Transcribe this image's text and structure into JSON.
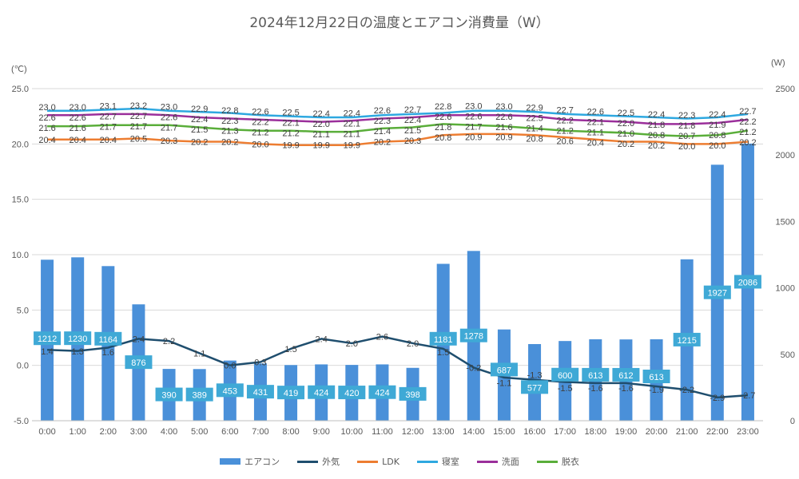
{
  "chart_data": {
    "type": "bar+line",
    "title": "2024年12月22日の温度とエアコン消費量（W）",
    "y_left_label": "(℃)",
    "y_right_label": "(W)",
    "y_left_lim": [
      -5,
      25
    ],
    "y_left_ticks": [
      "-5.0",
      "0.0",
      "5.0",
      "10.0",
      "15.0",
      "20.0",
      "25.0"
    ],
    "y_right_lim": [
      0,
      2500
    ],
    "y_right_ticks": [
      "0",
      "500",
      "1000",
      "1500",
      "2000",
      "2500"
    ],
    "grid": true,
    "legend_position": "bottom",
    "categories": [
      "0:00",
      "1:00",
      "2:00",
      "3:00",
      "4:00",
      "5:00",
      "6:00",
      "7:00",
      "8:00",
      "9:00",
      "10:00",
      "11:00",
      "12:00",
      "13:00",
      "14:00",
      "15:00",
      "16:00",
      "17:00",
      "18:00",
      "19:00",
      "20:00",
      "21:00",
      "22:00",
      "23:00"
    ],
    "bar_series": {
      "name": "エアコン",
      "axis": "right",
      "color": "#4a90d9",
      "label_bg": "#3fa9d6",
      "values": [
        1212,
        1230,
        1164,
        876,
        390,
        389,
        453,
        431,
        419,
        424,
        420,
        424,
        398,
        1181,
        1278,
        687,
        577,
        600,
        613,
        612,
        613,
        1215,
        1927,
        2086
      ]
    },
    "line_series": [
      {
        "name": "外気",
        "color": "#1f4e6e",
        "values": [
          1.4,
          1.3,
          1.6,
          2.4,
          2.2,
          1.1,
          0.0,
          0.3,
          1.5,
          2.4,
          2.0,
          2.6,
          2.0,
          1.5,
          -0.2,
          -1.1,
          -1.3,
          -1.5,
          -1.6,
          -1.6,
          -1.9,
          -2.2,
          -2.9,
          -2.7
        ]
      },
      {
        "name": "LDK",
        "color": "#ed7d31",
        "values": [
          20.4,
          20.4,
          20.4,
          20.5,
          20.3,
          20.2,
          20.2,
          20.0,
          19.9,
          19.9,
          19.9,
          20.2,
          20.3,
          20.8,
          20.9,
          20.9,
          20.8,
          20.6,
          20.4,
          20.2,
          20.2,
          20.0,
          20.0,
          20.2
        ]
      },
      {
        "name": "寝室",
        "color": "#2ea8e0",
        "values": [
          23.0,
          23.0,
          23.1,
          23.2,
          23.0,
          22.9,
          22.8,
          22.6,
          22.5,
          22.4,
          22.4,
          22.6,
          22.7,
          22.8,
          23.0,
          23.0,
          22.9,
          22.7,
          22.6,
          22.5,
          22.4,
          22.3,
          22.4,
          22.7
        ]
      },
      {
        "name": "洗面",
        "color": "#9b2f9b",
        "values": [
          22.6,
          22.6,
          22.7,
          22.7,
          22.6,
          22.4,
          22.3,
          22.2,
          22.1,
          22.0,
          22.1,
          22.3,
          22.4,
          22.6,
          22.6,
          22.6,
          22.5,
          22.2,
          22.1,
          22.0,
          21.8,
          21.8,
          21.9,
          22.2
        ]
      },
      {
        "name": "脱衣",
        "color": "#5aae3a",
        "values": [
          21.6,
          21.6,
          21.7,
          21.7,
          21.7,
          21.5,
          21.3,
          21.2,
          21.2,
          21.1,
          21.1,
          21.4,
          21.5,
          21.8,
          21.7,
          21.6,
          21.4,
          21.2,
          21.1,
          21.0,
          20.8,
          20.7,
          20.8,
          21.2
        ]
      }
    ]
  }
}
